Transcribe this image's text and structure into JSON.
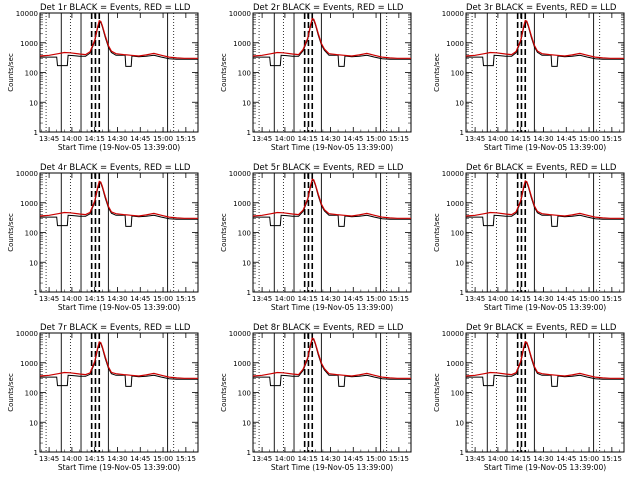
{
  "chart_data": {
    "type": "line",
    "ylabel": "Counts/sec",
    "xlabel": "Start Time (19-Nov-05 13:39:00)",
    "y_scale": "log",
    "ylim": [
      1,
      10000
    ],
    "y_ticks": [
      "1",
      "10",
      "100",
      "1000",
      "10000"
    ],
    "x_range_minutes": [
      0,
      104
    ],
    "x_ticks": [
      {
        "label": "13:45",
        "min": 6
      },
      {
        "label": "14:00",
        "min": 21
      },
      {
        "label": "14:15",
        "min": 36
      },
      {
        "label": "14:30",
        "min": 51
      },
      {
        "label": "14:45",
        "min": 66
      },
      {
        "label": "15:00",
        "min": 81
      },
      {
        "label": "15:15",
        "min": 96
      }
    ],
    "legend_text": "BLACK = Events, RED = LLD",
    "colors": {
      "events": "#000000",
      "lld": "#cc0000"
    },
    "panels": [
      {
        "id": "1",
        "title": "Det 1r BLACK = Events, RED = LLD",
        "peak": 5500
      },
      {
        "id": "2",
        "title": "Det 2r BLACK = Events, RED = LLD",
        "peak": 6500
      },
      {
        "id": "3",
        "title": "Det 3r BLACK = Events, RED = LLD",
        "peak": 5600
      },
      {
        "id": "4",
        "title": "Det 4r BLACK = Events, RED = LLD",
        "peak": 5200
      },
      {
        "id": "5",
        "title": "Det 5r BLACK = Events, RED = LLD",
        "peak": 6200
      },
      {
        "id": "6",
        "title": "Det 6r BLACK = Events, RED = LLD",
        "peak": 5400
      },
      {
        "id": "7",
        "title": "Det 7r BLACK = Events, RED = LLD",
        "peak": 5000
      },
      {
        "id": "8",
        "title": "Det 8r BLACK = Events, RED = LLD",
        "peak": 6700
      },
      {
        "id": "9",
        "title": "Det 9r BLACK = Events, RED = LLD",
        "peak": 5100
      }
    ],
    "series_lld_profile": {
      "minutes": [
        0,
        6,
        12,
        16,
        20,
        26,
        30,
        33,
        36,
        38,
        39,
        40,
        41,
        43,
        45,
        47,
        50,
        55,
        60,
        65,
        70,
        75,
        80,
        85,
        90,
        95,
        100,
        104
      ],
      "values_fraction_of_peak": null,
      "values": [
        360,
        380,
        430,
        470,
        460,
        420,
        400,
        500,
        1200,
        3500,
        5500,
        5200,
        3800,
        1700,
        800,
        520,
        430,
        400,
        380,
        360,
        390,
        440,
        380,
        330,
        310,
        300,
        300,
        300
      ]
    },
    "series_events_profile": {
      "minutes": [
        0,
        6,
        11,
        11.5,
        18,
        18.5,
        22,
        26,
        30,
        33,
        36,
        38,
        39,
        40,
        41,
        43,
        45,
        47,
        50,
        56,
        56.5,
        60,
        60.5,
        65,
        70,
        75,
        80,
        85,
        90,
        95,
        100,
        104
      ],
      "values": [
        330,
        330,
        330,
        170,
        170,
        380,
        370,
        350,
        350,
        450,
        1100,
        3200,
        5000,
        4800,
        3500,
        1500,
        720,
        470,
        380,
        380,
        160,
        160,
        360,
        340,
        350,
        380,
        330,
        290,
        280,
        280,
        280,
        280
      ]
    },
    "vertical_lines": {
      "dotted": [
        4,
        20,
        88
      ],
      "solid": [
        14,
        27,
        45,
        84
      ],
      "dashed": [
        34,
        36.5,
        39
      ]
    }
  }
}
